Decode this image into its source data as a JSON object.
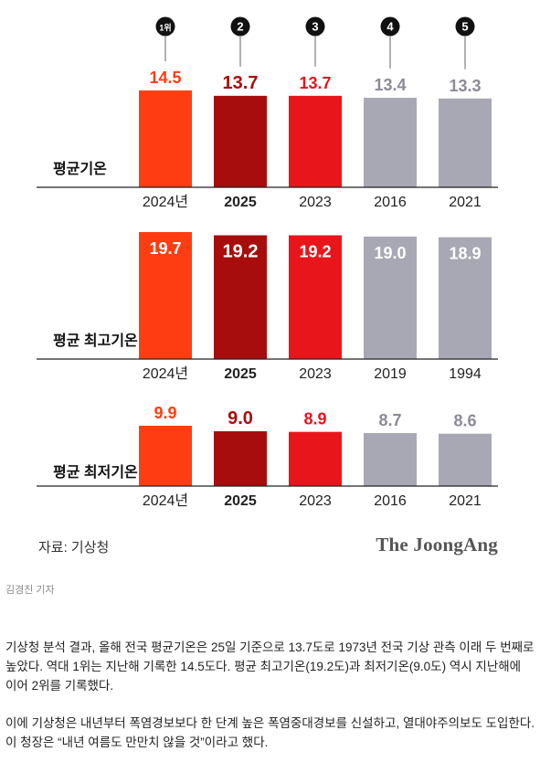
{
  "chart_data": [
    {
      "type": "bar",
      "title": "평균기온",
      "categories": [
        "2024년",
        "2025",
        "2023",
        "2016",
        "2021"
      ],
      "values": [
        14.5,
        13.7,
        13.7,
        13.4,
        13.3
      ],
      "value_labels": [
        "14.5",
        "13.7",
        "13.7",
        "13.4",
        "13.3"
      ],
      "rank_labels": [
        "1위",
        "2",
        "3",
        "4",
        "5"
      ],
      "colors": [
        "#ff3d12",
        "#a80d0d",
        "#e8151b",
        "#a8a8b5",
        "#a8a8b5"
      ],
      "label_colors": [
        "#ff3d12",
        "#a80d0d",
        "#e8151b",
        "#8b8b98",
        "#8b8b98"
      ],
      "highlight_category": "2025"
    },
    {
      "type": "bar",
      "title": "평균 최고기온",
      "categories": [
        "2024년",
        "2025",
        "2023",
        "2019",
        "1994"
      ],
      "values": [
        19.7,
        19.2,
        19.2,
        19.0,
        18.9
      ],
      "value_labels": [
        "19.7",
        "19.2",
        "19.2",
        "19.0",
        "18.9"
      ],
      "colors": [
        "#ff3d12",
        "#a80d0d",
        "#e8151b",
        "#a8a8b5",
        "#a8a8b5"
      ],
      "label_colors": [
        "#ffffff",
        "#ffffff",
        "#ffffff",
        "#ffffff",
        "#ffffff"
      ],
      "highlight_category": "2025"
    },
    {
      "type": "bar",
      "title": "평균 최저기온",
      "categories": [
        "2024년",
        "2025",
        "2023",
        "2016",
        "2021"
      ],
      "values": [
        9.9,
        9.0,
        8.9,
        8.7,
        8.6
      ],
      "value_labels": [
        "9.9",
        "9.0",
        "8.9",
        "8.7",
        "8.6"
      ],
      "colors": [
        "#ff3d12",
        "#a80d0d",
        "#e8151b",
        "#a8a8b5",
        "#a8a8b5"
      ],
      "label_colors": [
        "#ff3d12",
        "#a80d0d",
        "#e8151b",
        "#8b8b98",
        "#8b8b98"
      ],
      "highlight_category": "2025"
    }
  ],
  "source": "자료: 기상청",
  "brand": "The JoongAng",
  "byline": "김경진 기자",
  "article": {
    "paragraph1": "기상청 분석 결과, 올해 전국 평균기온은 25일 기준으로 13.7도로 1973년 전국 기상 관측 이래 두 번째로 높았다. 역대 1위는 지난해 기록한 14.5도다. 평균 최고기온(19.2도)과 최저기온(9.0도) 역시 지난해에 이어 2위를 기록했다.",
    "paragraph2": "이에 기상청은 내년부터 폭염경보보다 한 단계 높은 폭염중대경보를 신설하고, 열대야주의보도 도입한다. 이 청장은 “내년 여름도 만만치 않을 것”이라고 했다."
  }
}
